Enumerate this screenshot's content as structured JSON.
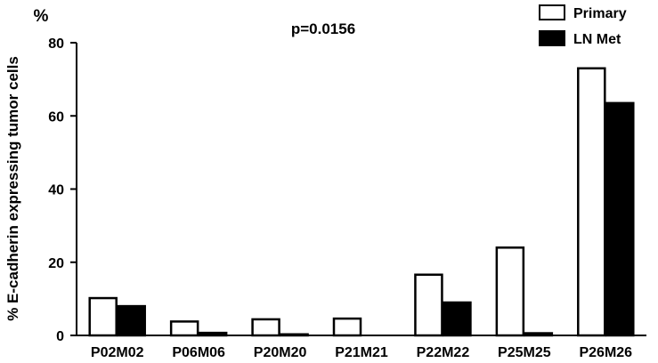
{
  "chart_data": {
    "type": "bar",
    "title": "p=0.0156",
    "unit_label": "%",
    "ylabel": "% E-cadherin expressing tumor cells",
    "xlabel": "",
    "ylim": [
      0,
      80
    ],
    "yticks": [
      0,
      20,
      40,
      60,
      80
    ],
    "grid": false,
    "legend_position": "top-right",
    "categories": [
      "P02M02",
      "P06M06",
      "P20M20",
      "P21M21",
      "P22M22",
      "P25M25",
      "P26M26"
    ],
    "series": [
      {
        "name": "Primary",
        "color": "#ffffff",
        "edge": "#000000",
        "values": [
          10.2,
          3.8,
          4.4,
          4.6,
          16.6,
          24.0,
          73.0
        ]
      },
      {
        "name": "LN Met",
        "color": "#000000",
        "edge": "#000000",
        "values": [
          8.0,
          0.7,
          0.3,
          0.0,
          9.0,
          0.6,
          63.5
        ]
      }
    ]
  }
}
